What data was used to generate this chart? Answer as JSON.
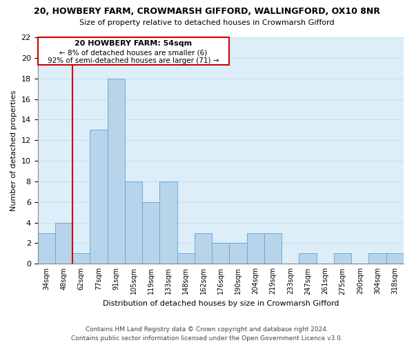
{
  "title_line1": "20, HOWBERY FARM, CROWMARSH GIFFORD, WALLINGFORD, OX10 8NR",
  "title_line2": "Size of property relative to detached houses in Crowmarsh Gifford",
  "xlabel": "Distribution of detached houses by size in Crowmarsh Gifford",
  "ylabel": "Number of detached properties",
  "bin_labels": [
    "34sqm",
    "48sqm",
    "62sqm",
    "77sqm",
    "91sqm",
    "105sqm",
    "119sqm",
    "133sqm",
    "148sqm",
    "162sqm",
    "176sqm",
    "190sqm",
    "204sqm",
    "219sqm",
    "233sqm",
    "247sqm",
    "261sqm",
    "275sqm",
    "290sqm",
    "304sqm",
    "318sqm"
  ],
  "bar_heights": [
    3,
    4,
    1,
    13,
    18,
    8,
    6,
    8,
    1,
    3,
    2,
    2,
    3,
    3,
    0,
    1,
    0,
    1,
    0,
    1,
    1
  ],
  "bar_color": "#b8d4ea",
  "bar_edge_color": "#6aaad4",
  "grid_color": "#c8dff0",
  "bg_color": "#ddeef8",
  "vline_color": "#cc0000",
  "annotation_title": "20 HOWBERY FARM: 54sqm",
  "annotation_line2": "← 8% of detached houses are smaller (6)",
  "annotation_line3": "92% of semi-detached houses are larger (71) →",
  "annotation_box_color": "#ffffff",
  "annotation_box_edge": "#cc0000",
  "footer_line1": "Contains HM Land Registry data © Crown copyright and database right 2024.",
  "footer_line2": "Contains public sector information licensed under the Open Government Licence v3.0.",
  "ylim": [
    0,
    22
  ],
  "yticks": [
    0,
    2,
    4,
    6,
    8,
    10,
    12,
    14,
    16,
    18,
    20,
    22
  ]
}
